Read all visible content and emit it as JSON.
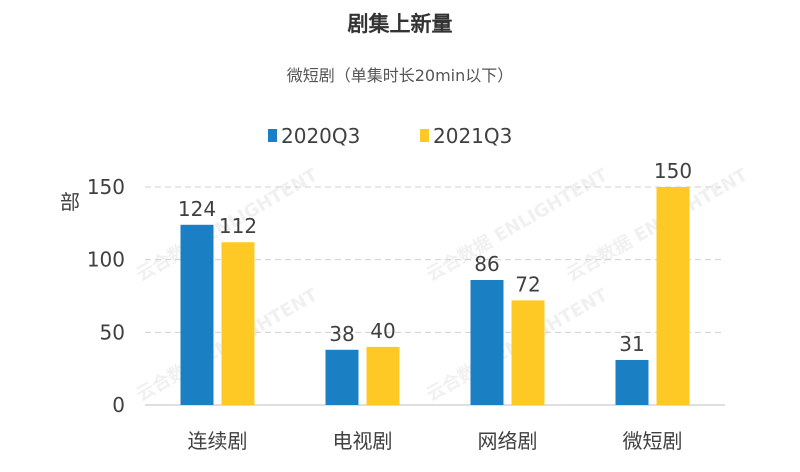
{
  "chart_data": {
    "type": "bar",
    "title": "剧集上新量",
    "subtitle": "微短剧（单集时长20min以下）",
    "ylabel": "部",
    "xlabel": "",
    "categories": [
      "连续剧",
      "电视剧",
      "网络剧",
      "微短剧"
    ],
    "series": [
      {
        "name": "2020Q3",
        "values": [
          124,
          38,
          86,
          31
        ],
        "color": "#1B7FC4"
      },
      {
        "name": "2021Q3",
        "values": [
          112,
          40,
          72,
          150
        ],
        "color": "#FFC925"
      }
    ],
    "ylim": [
      0,
      150
    ],
    "yticks": [
      0,
      50,
      100,
      150
    ],
    "grid": true,
    "legend": "top-center",
    "watermark": "云合数据 ENLIGHTENT"
  }
}
